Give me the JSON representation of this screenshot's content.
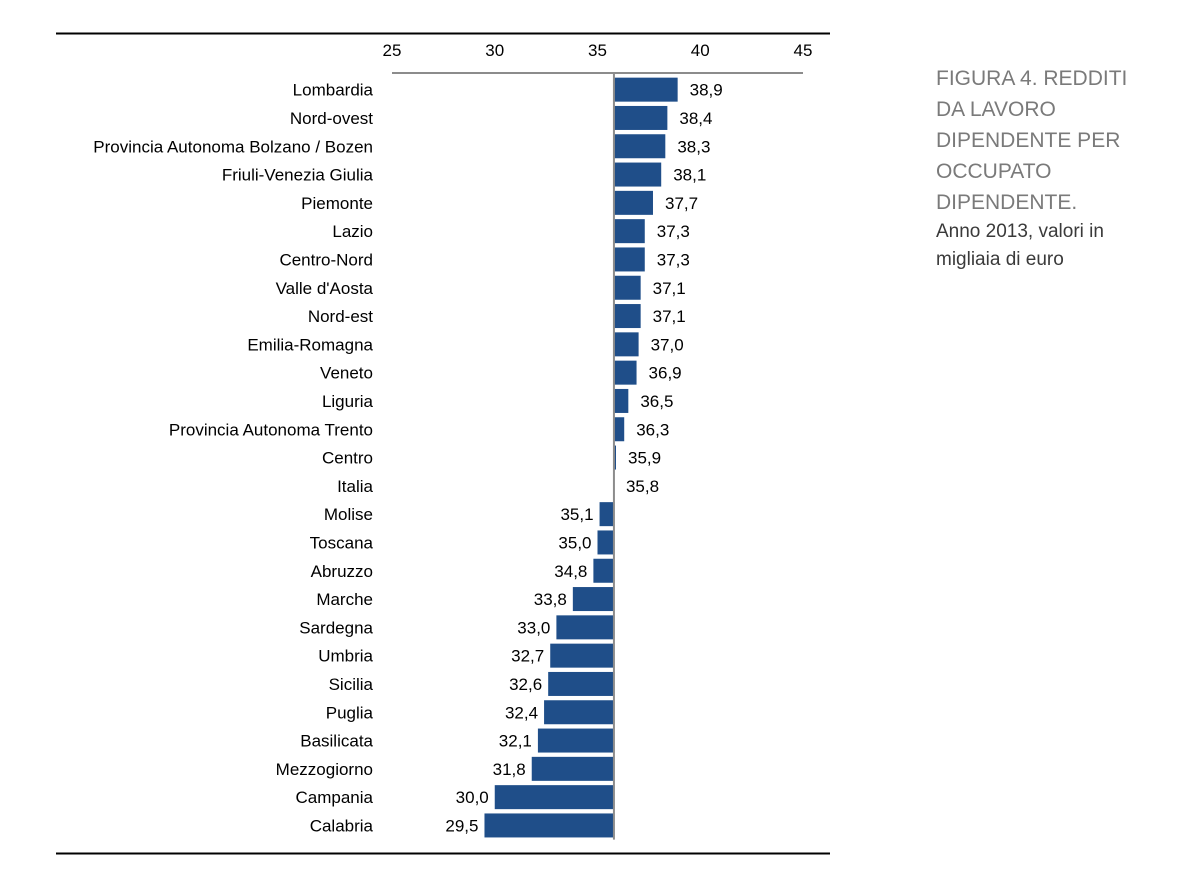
{
  "chart_data": {
    "type": "bar",
    "orientation": "horizontal",
    "baseline": 35.8,
    "xlim": [
      25,
      45
    ],
    "x_ticks": [
      "25",
      "30",
      "35",
      "40",
      "45"
    ],
    "x_tick_values": [
      25,
      30,
      35,
      40,
      45
    ],
    "categories": [
      "Lombardia",
      "Nord-ovest",
      "Provincia Autonoma Bolzano / Bozen",
      "Friuli-Venezia Giulia",
      "Piemonte",
      "Lazio",
      "Centro-Nord",
      "Valle d'Aosta",
      "Nord-est",
      "Emilia-Romagna",
      "Veneto",
      "Liguria",
      "Provincia Autonoma Trento",
      "Centro",
      "Italia",
      "Molise",
      "Toscana",
      "Abruzzo",
      "Marche",
      "Sardegna",
      "Umbria",
      "Sicilia",
      "Puglia",
      "Basilicata",
      "Mezzogiorno",
      "Campania",
      "Calabria"
    ],
    "values": [
      38.9,
      38.4,
      38.3,
      38.1,
      37.7,
      37.3,
      37.3,
      37.1,
      37.1,
      37.0,
      36.9,
      36.5,
      36.3,
      35.9,
      35.8,
      35.1,
      35.0,
      34.8,
      33.8,
      33.0,
      32.7,
      32.6,
      32.4,
      32.1,
      31.8,
      30.0,
      29.5
    ],
    "value_labels": [
      "38,9",
      "38,4",
      "38,3",
      "38,1",
      "37,7",
      "37,3",
      "37,3",
      "37,1",
      "37,1",
      "37,0",
      "36,9",
      "36,5",
      "36,3",
      "35,9",
      "35,8",
      "35,1",
      "35,0",
      "34,8",
      "33,8",
      "33,0",
      "32,7",
      "32,6",
      "32,4",
      "32,1",
      "31,8",
      "30,0",
      "29,5"
    ],
    "title": "FIGURA 4. REDDITI DA LAVORO DIPENDENTE PER OCCUPATO DIPENDENTE.",
    "subtitle": "Anno 2013, valori in migliaia di euro",
    "colors": {
      "bar": "#1f4e89",
      "axis": "#8c8c8c",
      "rule": "#000000"
    }
  },
  "caption": {
    "title": "FIGURA 4. REDDITI\nDA LAVORO\nDIPENDENTE PER\nOCCUPATO\nDIPENDENTE.",
    "subtitle": "Anno 2013, valori in\nmigliaia di euro"
  }
}
